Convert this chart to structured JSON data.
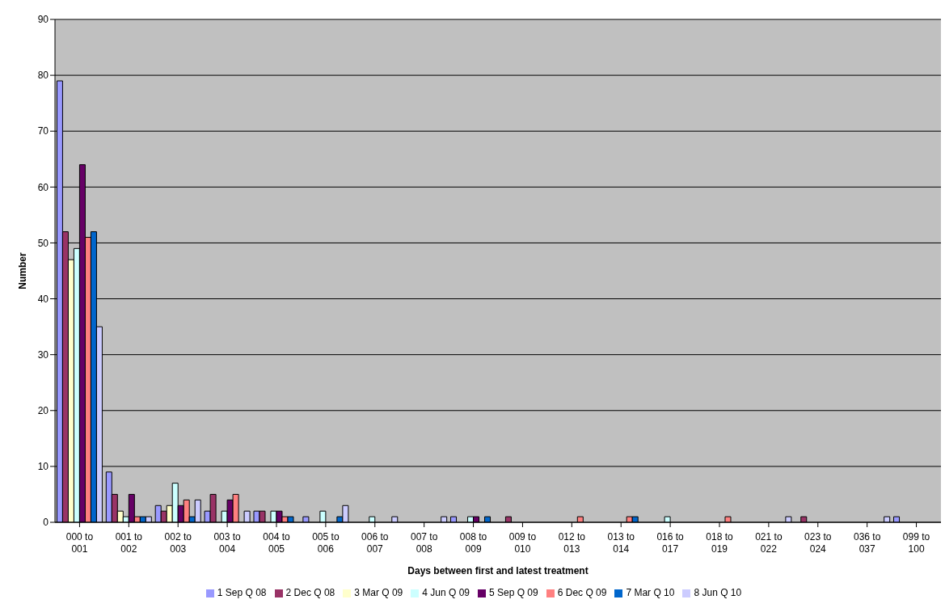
{
  "chart_data": {
    "type": "bar",
    "xlabel": "Days between first and latest treatment",
    "ylabel": "Number",
    "categories": [
      "000 to 001",
      "001 to 002",
      "002 to 003",
      "003 to 004",
      "004 to 005",
      "005 to 006",
      "006 to 007",
      "007 to 008",
      "008 to 009",
      "009 to 010",
      "012 to 013",
      "013 to 014",
      "016 to 017",
      "018 to 019",
      "021 to 022",
      "023 to 024",
      "036 to 037",
      "099 to 100"
    ],
    "series": [
      {
        "name": "1 Sep Q 08",
        "color": "#9999ff",
        "values": [
          79,
          9,
          3,
          2,
          2,
          1,
          0,
          0,
          1,
          0,
          0,
          0,
          0,
          0,
          0,
          0,
          0,
          1
        ]
      },
      {
        "name": "2 Dec Q 08",
        "color": "#993366",
        "values": [
          52,
          5,
          2,
          5,
          2,
          0,
          0,
          0,
          0,
          1,
          0,
          0,
          0,
          0,
          0,
          1,
          0,
          0
        ]
      },
      {
        "name": "3 Mar Q 09",
        "color": "#ffffcc",
        "values": [
          47,
          2,
          3,
          0,
          0,
          0,
          0,
          0,
          0,
          0,
          0,
          0,
          0,
          0,
          0,
          0,
          0,
          0
        ]
      },
      {
        "name": "4 Jun Q 09",
        "color": "#ccffff",
        "values": [
          49,
          1,
          7,
          2,
          2,
          2,
          1,
          0,
          1,
          0,
          0,
          0,
          1,
          0,
          0,
          0,
          0,
          0
        ]
      },
      {
        "name": "5 Sep Q 09",
        "color": "#660066",
        "values": [
          64,
          5,
          3,
          4,
          2,
          0,
          0,
          0,
          1,
          0,
          0,
          0,
          0,
          0,
          0,
          0,
          0,
          0
        ]
      },
      {
        "name": "6 Dec Q 09",
        "color": "#ff8080",
        "values": [
          51,
          1,
          4,
          5,
          1,
          0,
          0,
          0,
          0,
          0,
          1,
          1,
          0,
          1,
          0,
          0,
          0,
          0
        ]
      },
      {
        "name": "7 Mar Q 10",
        "color": "#0066cc",
        "values": [
          52,
          1,
          1,
          0,
          1,
          1,
          0,
          0,
          1,
          0,
          0,
          1,
          0,
          0,
          0,
          0,
          0,
          0
        ]
      },
      {
        "name": "8 Jun Q 10",
        "color": "#ccccff",
        "values": [
          35,
          1,
          4,
          2,
          0,
          3,
          1,
          1,
          0,
          0,
          0,
          0,
          0,
          0,
          1,
          0,
          1,
          0
        ]
      }
    ],
    "ylim": [
      0,
      90
    ],
    "yticks": [
      0,
      10,
      20,
      30,
      40,
      50,
      60,
      70,
      80,
      90
    ],
    "grid": "y",
    "legend": "bottom"
  }
}
